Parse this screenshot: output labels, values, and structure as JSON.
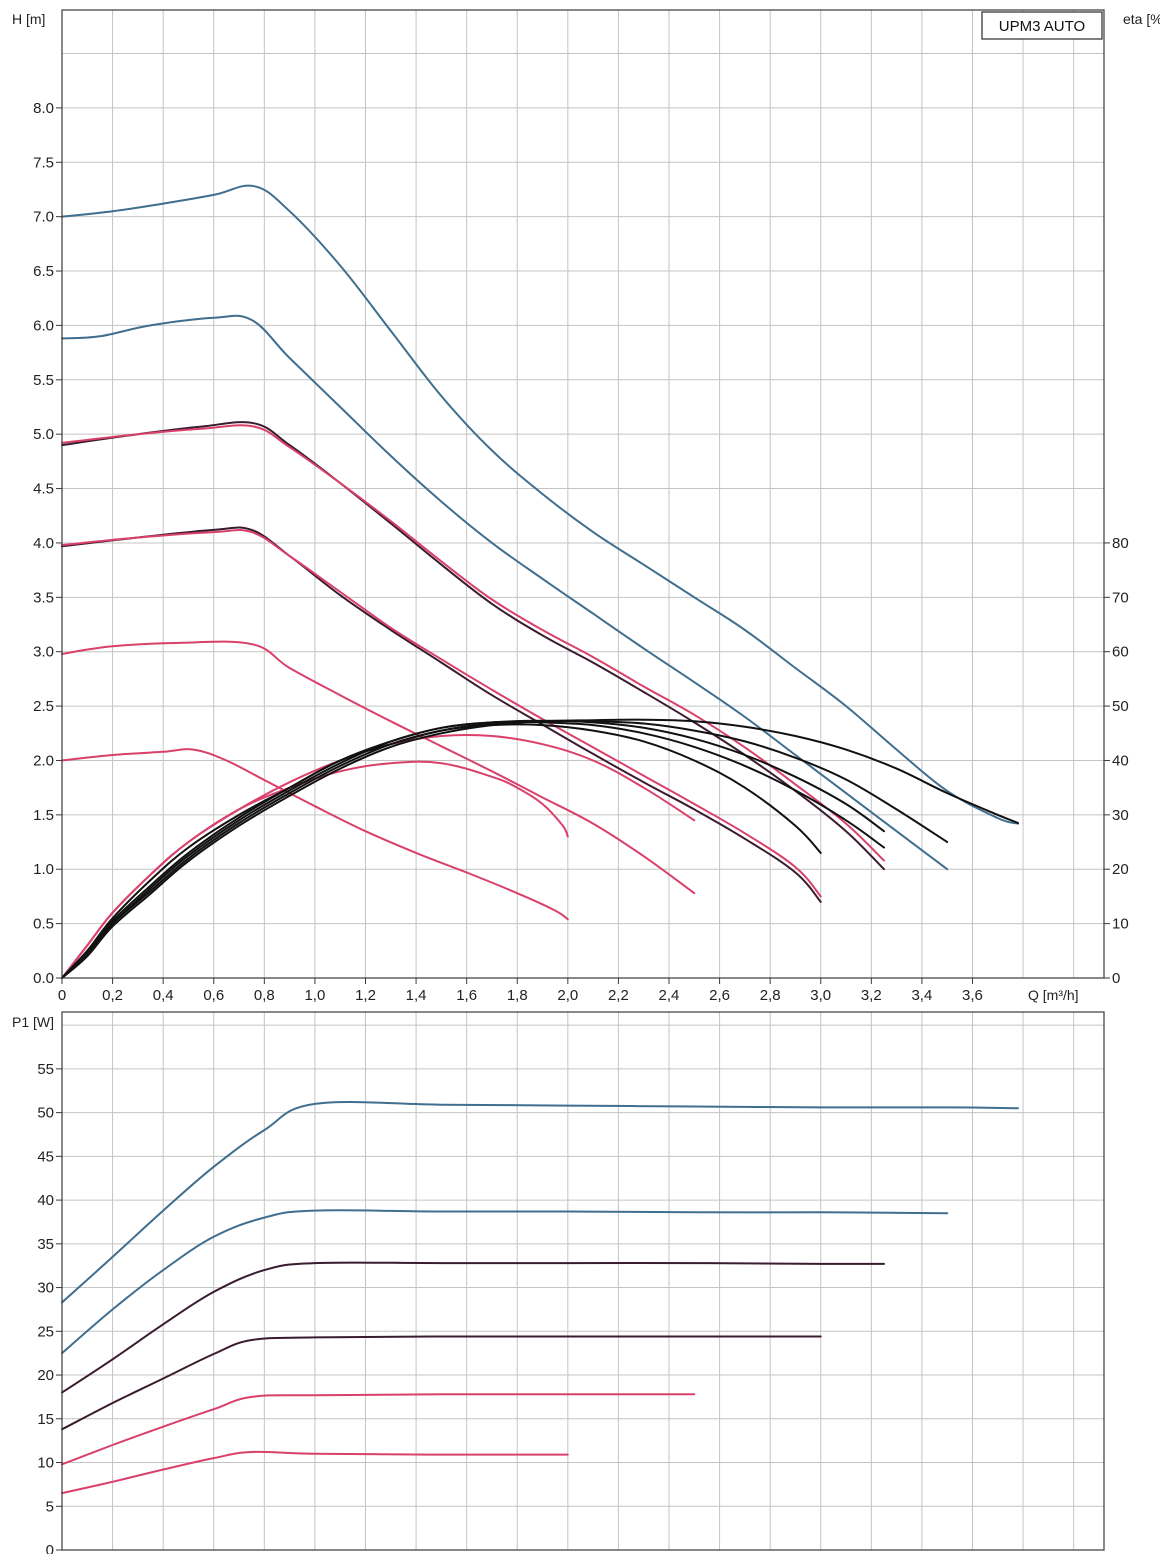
{
  "chart_data": [
    {
      "type": "line",
      "title": "UPM3 AUTO",
      "ylabel": "H [m]",
      "y2label": "eta [%]",
      "xlabel": "Q [m³/h]",
      "xlim": [
        0,
        4.0
      ],
      "ylim": [
        0,
        8.0
      ],
      "y2lim": [
        0,
        80
      ],
      "x_tick_labels": [
        "0",
        "0,2",
        "0,4",
        "0,6",
        "0,8",
        "1,0",
        "1,2",
        "1,4",
        "1,6",
        "1,8",
        "2,0",
        "2,2",
        "2,4",
        "2,6",
        "2,8",
        "3,0",
        "3,2",
        "3,4",
        "3,6"
      ],
      "x_tick_values": [
        0,
        0.2,
        0.4,
        0.6,
        0.8,
        1.0,
        1.2,
        1.4,
        1.6,
        1.8,
        2.0,
        2.2,
        2.4,
        2.6,
        2.8,
        3.0,
        3.2,
        3.4,
        3.6
      ],
      "y_tick_labels": [
        "0.0",
        "0.5",
        "1.0",
        "1.5",
        "2.0",
        "2.5",
        "3.0",
        "3.5",
        "4.0",
        "4.5",
        "5.0",
        "5.5",
        "6.0",
        "6.5",
        "7.0",
        "7.5",
        "8.0"
      ],
      "y_tick_values": [
        0,
        0.5,
        1.0,
        1.5,
        2.0,
        2.5,
        3.0,
        3.5,
        4.0,
        4.5,
        5.0,
        5.5,
        6.0,
        6.5,
        7.0,
        7.5,
        8.0
      ],
      "y2_tick_labels": [
        "0",
        "10",
        "20",
        "30",
        "40",
        "50",
        "60",
        "70",
        "80"
      ],
      "y2_tick_values": [
        0,
        10,
        20,
        30,
        40,
        50,
        60,
        70,
        80
      ],
      "grid": true,
      "colors": {
        "blue": "#3f6e8e",
        "pink": "#d9406a",
        "dark": "#3a1b30",
        "black": "#111111"
      },
      "series": [
        {
          "color": "blue",
          "axis": "H",
          "x": [
            0,
            0.2,
            0.4,
            0.6,
            0.76,
            0.9,
            1.1,
            1.3,
            1.5,
            1.7,
            1.9,
            2.1,
            2.3,
            2.5,
            2.7,
            2.9,
            3.1,
            3.3,
            3.5,
            3.7,
            3.78
          ],
          "y": [
            7.0,
            7.05,
            7.12,
            7.2,
            7.28,
            7.05,
            6.55,
            5.95,
            5.35,
            4.85,
            4.45,
            4.1,
            3.8,
            3.5,
            3.2,
            2.85,
            2.5,
            2.1,
            1.72,
            1.47,
            1.42
          ]
        },
        {
          "color": "blue",
          "axis": "H",
          "x": [
            0,
            0.15,
            0.35,
            0.6,
            0.75,
            0.9,
            1.1,
            1.3,
            1.5,
            1.7,
            1.9,
            2.1,
            2.3,
            2.5,
            2.7,
            2.9,
            3.1,
            3.3,
            3.5
          ],
          "y": [
            5.88,
            5.9,
            6.0,
            6.07,
            6.05,
            5.7,
            5.25,
            4.8,
            4.38,
            4.0,
            3.67,
            3.35,
            3.03,
            2.72,
            2.4,
            2.05,
            1.7,
            1.35,
            1.0
          ]
        },
        {
          "color": "dark",
          "axis": "H",
          "x": [
            0,
            0.3,
            0.55,
            0.76,
            0.9,
            1.1,
            1.3,
            1.5,
            1.7,
            1.9,
            2.1,
            2.3,
            2.5,
            2.7,
            2.9,
            3.1,
            3.25
          ],
          "y": [
            4.9,
            5.0,
            5.07,
            5.1,
            4.9,
            4.55,
            4.18,
            3.8,
            3.44,
            3.15,
            2.9,
            2.63,
            2.35,
            2.05,
            1.72,
            1.35,
            1.0
          ]
        },
        {
          "color": "pink",
          "axis": "H",
          "x": [
            0,
            0.3,
            0.55,
            0.76,
            0.9,
            1.1,
            1.3,
            1.5,
            1.7,
            1.9,
            2.1,
            2.3,
            2.5,
            2.7,
            2.9,
            3.1,
            3.25
          ],
          "y": [
            4.92,
            5.0,
            5.05,
            5.07,
            4.88,
            4.55,
            4.2,
            3.83,
            3.48,
            3.2,
            2.95,
            2.68,
            2.42,
            2.12,
            1.78,
            1.42,
            1.08
          ]
        },
        {
          "color": "dark",
          "axis": "H",
          "x": [
            0,
            0.3,
            0.6,
            0.75,
            0.9,
            1.1,
            1.3,
            1.5,
            1.7,
            1.9,
            2.1,
            2.3,
            2.5,
            2.7,
            2.9,
            3.0
          ],
          "y": [
            3.97,
            4.05,
            4.12,
            4.12,
            3.88,
            3.52,
            3.2,
            2.9,
            2.6,
            2.33,
            2.06,
            1.8,
            1.55,
            1.28,
            0.97,
            0.7
          ]
        },
        {
          "color": "pink",
          "axis": "H",
          "x": [
            0,
            0.3,
            0.6,
            0.75,
            0.9,
            1.1,
            1.3,
            1.5,
            1.7,
            1.9,
            2.1,
            2.3,
            2.5,
            2.7,
            2.9,
            3.0
          ],
          "y": [
            3.98,
            4.05,
            4.1,
            4.1,
            3.88,
            3.55,
            3.22,
            2.93,
            2.65,
            2.38,
            2.12,
            1.86,
            1.6,
            1.33,
            1.02,
            0.75
          ]
        },
        {
          "color": "pink",
          "axis": "H",
          "x": [
            0,
            0.2,
            0.45,
            0.75,
            0.9,
            1.1,
            1.3,
            1.5,
            1.7,
            1.9,
            2.1,
            2.3,
            2.5
          ],
          "y": [
            2.98,
            3.05,
            3.08,
            3.07,
            2.85,
            2.6,
            2.36,
            2.13,
            1.9,
            1.66,
            1.42,
            1.12,
            0.78
          ]
        },
        {
          "color": "pink",
          "axis": "H",
          "x": [
            0,
            0.2,
            0.4,
            0.52,
            0.65,
            0.8,
            1.0,
            1.2,
            1.4,
            1.6,
            1.8,
            1.95,
            2.0
          ],
          "y": [
            2.0,
            2.05,
            2.08,
            2.1,
            2.0,
            1.82,
            1.58,
            1.35,
            1.15,
            0.97,
            0.78,
            0.62,
            0.54
          ]
        },
        {
          "color": "pink",
          "axis": "eta",
          "x": [
            0,
            0.1,
            0.2,
            0.35,
            0.5,
            0.7,
            0.9,
            1.1,
            1.3,
            1.5,
            1.7,
            1.8,
            1.9,
            1.98,
            2.0
          ],
          "y": [
            0,
            6,
            12,
            19,
            25,
            31,
            35,
            38,
            39.5,
            39.5,
            37,
            35,
            32,
            28,
            26
          ]
        },
        {
          "color": "pink",
          "axis": "eta",
          "x": [
            0,
            0.1,
            0.2,
            0.35,
            0.5,
            0.7,
            0.9,
            1.1,
            1.3,
            1.5,
            1.7,
            1.9,
            2.1,
            2.3,
            2.5
          ],
          "y": [
            0,
            6,
            12,
            19,
            25,
            31,
            36,
            40,
            43,
            44.5,
            44.5,
            43,
            40,
            35,
            29
          ]
        },
        {
          "color": "black",
          "axis": "eta",
          "x": [
            0,
            0.1,
            0.2,
            0.35,
            0.5,
            0.7,
            0.9,
            1.1,
            1.3,
            1.5,
            1.7,
            1.9,
            2.1,
            2.3,
            2.5,
            2.7,
            2.9,
            3.0
          ],
          "y": [
            0,
            5,
            11,
            18,
            24,
            30,
            35,
            40,
            43,
            45.5,
            46.5,
            46.5,
            45.5,
            43.5,
            40,
            35,
            28,
            23
          ]
        },
        {
          "color": "black",
          "axis": "eta",
          "x": [
            0,
            0.1,
            0.2,
            0.35,
            0.5,
            0.7,
            0.9,
            1.1,
            1.3,
            1.5,
            1.7,
            1.9,
            2.1,
            2.3,
            2.5,
            2.7,
            2.9,
            3.1,
            3.25
          ],
          "y": [
            0,
            5,
            10.5,
            17,
            23,
            29.5,
            35,
            40,
            43.5,
            46,
            47,
            47,
            46.5,
            45,
            42.5,
            39,
            34.5,
            29,
            24
          ]
        },
        {
          "color": "black",
          "axis": "eta",
          "x": [
            0,
            0.1,
            0.2,
            0.35,
            0.5,
            0.7,
            0.9,
            1.1,
            1.3,
            1.5,
            1.7,
            1.9,
            2.1,
            2.3,
            2.5,
            2.7,
            2.9,
            3.1,
            3.25
          ],
          "y": [
            0,
            4.5,
            10,
            16.5,
            22.5,
            29,
            34.5,
            39.5,
            43.5,
            46,
            47,
            47.3,
            47,
            46,
            44,
            41,
            37,
            32,
            27
          ]
        },
        {
          "color": "black",
          "axis": "eta",
          "x": [
            0,
            0.1,
            0.2,
            0.35,
            0.5,
            0.7,
            0.9,
            1.1,
            1.3,
            1.5,
            1.7,
            1.9,
            2.1,
            2.3,
            2.5,
            2.7,
            2.9,
            3.1,
            3.3,
            3.5
          ],
          "y": [
            0,
            4.5,
            10,
            16,
            22,
            28.5,
            34,
            39,
            43,
            45.5,
            46.8,
            47.2,
            47.2,
            46.8,
            45.5,
            43.5,
            40.5,
            36.5,
            31,
            25
          ]
        },
        {
          "color": "black",
          "axis": "eta",
          "x": [
            0,
            0.1,
            0.2,
            0.35,
            0.5,
            0.7,
            0.9,
            1.1,
            1.3,
            1.5,
            1.7,
            1.9,
            2.1,
            2.3,
            2.5,
            2.7,
            2.9,
            3.1,
            3.3,
            3.5,
            3.7,
            3.78
          ],
          "y": [
            0,
            4,
            9.5,
            15.5,
            21.5,
            28,
            33.5,
            38.5,
            42.5,
            45,
            46.5,
            47.2,
            47.4,
            47.5,
            47.2,
            46.2,
            44.5,
            42,
            38.5,
            34,
            30,
            28.5
          ]
        }
      ]
    },
    {
      "type": "line",
      "ylabel": "P1 [W]",
      "xlim": [
        0,
        4.0
      ],
      "ylim": [
        0,
        60
      ],
      "y_tick_labels": [
        "0",
        "5",
        "10",
        "15",
        "20",
        "25",
        "30",
        "35",
        "40",
        "45",
        "50",
        "55"
      ],
      "y_tick_values": [
        0,
        5,
        10,
        15,
        20,
        25,
        30,
        35,
        40,
        45,
        50,
        55
      ],
      "grid": true,
      "series": [
        {
          "color": "blue",
          "x": [
            0,
            0.2,
            0.4,
            0.6,
            0.8,
            1.0,
            1.5,
            2.0,
            2.5,
            3.0,
            3.5,
            3.78
          ],
          "y": [
            28.3,
            33.5,
            38.8,
            43.8,
            48.0,
            51.0,
            50.9,
            50.8,
            50.7,
            50.6,
            50.6,
            50.5
          ]
        },
        {
          "color": "blue",
          "x": [
            0,
            0.2,
            0.4,
            0.6,
            0.8,
            1.0,
            1.5,
            2.0,
            2.5,
            3.0,
            3.5
          ],
          "y": [
            22.5,
            27.5,
            32.0,
            35.8,
            38.0,
            38.8,
            38.7,
            38.7,
            38.6,
            38.6,
            38.5
          ]
        },
        {
          "color": "dark",
          "x": [
            0,
            0.2,
            0.4,
            0.6,
            0.8,
            1.0,
            1.5,
            2.0,
            2.5,
            3.0,
            3.25
          ],
          "y": [
            18.0,
            21.8,
            25.8,
            29.5,
            32.0,
            32.8,
            32.8,
            32.8,
            32.8,
            32.7,
            32.7
          ]
        },
        {
          "color": "dark",
          "x": [
            0,
            0.2,
            0.4,
            0.6,
            0.75,
            1.0,
            1.5,
            2.0,
            2.5,
            3.0
          ],
          "y": [
            13.8,
            16.8,
            19.6,
            22.4,
            24.0,
            24.3,
            24.4,
            24.4,
            24.4,
            24.4
          ]
        },
        {
          "color": "pink",
          "x": [
            0,
            0.2,
            0.4,
            0.6,
            0.75,
            1.0,
            1.5,
            2.0,
            2.5
          ],
          "y": [
            9.8,
            12.0,
            14.1,
            16.1,
            17.5,
            17.7,
            17.8,
            17.8,
            17.8
          ]
        },
        {
          "color": "pink",
          "x": [
            0,
            0.2,
            0.4,
            0.6,
            0.75,
            1.0,
            1.5,
            2.0
          ],
          "y": [
            6.5,
            7.8,
            9.2,
            10.5,
            11.2,
            11.0,
            10.9,
            10.9
          ]
        }
      ]
    }
  ]
}
